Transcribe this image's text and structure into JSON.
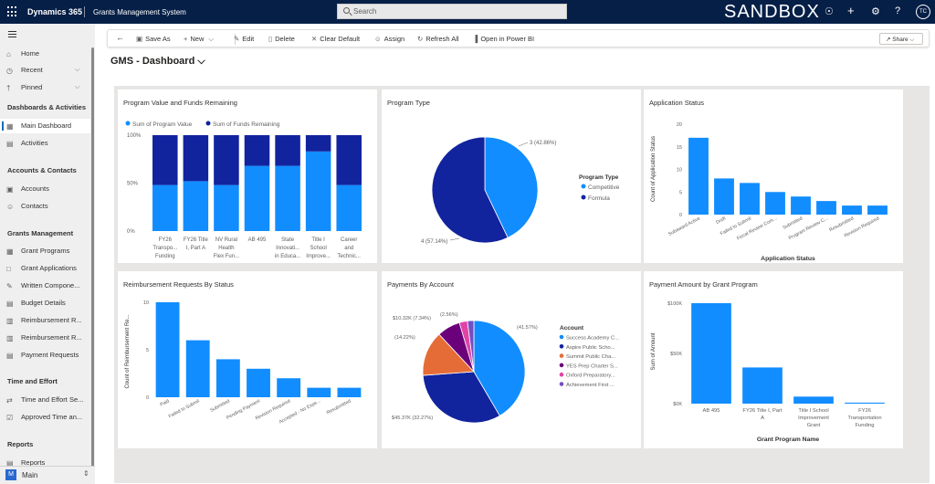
{
  "topbar": {
    "brand": "Dynamics 365",
    "app_name": "Grants Management System",
    "search_placeholder": "Search",
    "environment": "SANDBOX",
    "avatar_initials": "TC",
    "icons": [
      "lightbulb-icon",
      "plus-icon",
      "gear-icon",
      "help-icon"
    ]
  },
  "sidebar": {
    "top_items": [
      {
        "label": "Home",
        "icon": "home-icon"
      },
      {
        "label": "Recent",
        "icon": "clock-icon"
      },
      {
        "label": "Pinned",
        "icon": "pin-icon"
      }
    ],
    "groups": [
      {
        "heading": "Dashboards & Activities",
        "items": [
          {
            "label": "Main Dashboard",
            "icon": "dashboard-icon",
            "selected": true
          },
          {
            "label": "Activities",
            "icon": "clipboard-icon"
          }
        ]
      },
      {
        "heading": "Accounts & Contacts",
        "items": [
          {
            "label": "Accounts",
            "icon": "building-icon"
          },
          {
            "label": "Contacts",
            "icon": "person-icon"
          }
        ]
      },
      {
        "heading": "Grants Management",
        "items": [
          {
            "label": "Grant Programs",
            "icon": "grid-icon"
          },
          {
            "label": "Grant Applications",
            "icon": "document-icon"
          },
          {
            "label": "Written Compone...",
            "icon": "edit-icon"
          },
          {
            "label": "Budget Details",
            "icon": "money-icon"
          },
          {
            "label": "Reimbursement R...",
            "icon": "receipt-icon"
          },
          {
            "label": "Reimbursement R...",
            "icon": "receipt-list-icon"
          },
          {
            "label": "Payment Requests",
            "icon": "payment-icon"
          }
        ]
      },
      {
        "heading": "Time and Effort",
        "items": [
          {
            "label": "Time and Effort Se...",
            "icon": "time-icon"
          },
          {
            "label": "Approved Time an...",
            "icon": "approved-icon"
          }
        ]
      },
      {
        "heading": "Reports",
        "items": [
          {
            "label": "Reports",
            "icon": "report-icon"
          }
        ]
      }
    ],
    "area_badge": "M",
    "area_label": "Main"
  },
  "commands": {
    "save_as": "Save As",
    "new": "New",
    "edit": "Edit",
    "delete": "Delete",
    "clear_default": "Clear Default",
    "assign": "Assign",
    "refresh_all": "Refresh All",
    "open_power_bi": "Open in Power BI",
    "share": "Share"
  },
  "dashboard_title": "GMS - Dashboard",
  "chart_data": [
    {
      "type": "bar",
      "stacked": "100%",
      "title": "Program Value and Funds Remaining",
      "categories": [
        [
          "FY26",
          "Transpo...",
          "Funding"
        ],
        [
          "FY26 Title",
          "I, Part A"
        ],
        [
          "NV Rural",
          "Health",
          "Flex Fun..."
        ],
        [
          "AB 495"
        ],
        [
          "State",
          "Innovati...",
          "in Educa..."
        ],
        [
          "Title I",
          "School",
          "Improve..."
        ],
        [
          "Career",
          "and",
          "Technic..."
        ]
      ],
      "series": [
        {
          "name": "Sum of Program Value",
          "color": "#118dff",
          "values": [
            48,
            52,
            48,
            68,
            68,
            83,
            48
          ]
        },
        {
          "name": "Sum of Funds Remaining",
          "color": "#12239e",
          "values": [
            52,
            48,
            52,
            32,
            32,
            17,
            52
          ]
        }
      ],
      "ylim": [
        0,
        100
      ],
      "yticks": [
        "0%",
        "50%",
        "100%"
      ],
      "legend": "top-left"
    },
    {
      "type": "pie",
      "title": "Program Type",
      "legend_title": "Program Type",
      "slices": [
        {
          "name": "Competitive",
          "value": 3,
          "label": "3 (42.86%)",
          "color": "#118dff"
        },
        {
          "name": "Formula",
          "value": 4,
          "label": "4 (57.14%)",
          "color": "#12239e"
        }
      ],
      "legend": "right"
    },
    {
      "type": "bar",
      "title": "Application Status",
      "xlabel": "Application Status",
      "ylabel": "Count of Application Status",
      "categories": [
        "Subaward Active",
        "Draft",
        "Failed to Submit",
        "Fiscal Review Com...",
        "Submitted",
        "Program Review C...",
        "Resubmitted",
        "Revision Required"
      ],
      "values": [
        17,
        8,
        7,
        5,
        4,
        3,
        2,
        2
      ],
      "ylim": [
        0,
        20
      ],
      "yticks": [
        "0",
        "5",
        "10",
        "15",
        "20"
      ]
    },
    {
      "type": "bar",
      "title": "Reimbursement Requests By Status",
      "ylabel": "Count of Reimbursement Re...",
      "categories": [
        "Paid",
        "Failed to Submit",
        "Submitted",
        "Pending Payment",
        "Revision Required",
        "Accepted - No Expe...",
        "Resubmitted"
      ],
      "values": [
        10,
        6,
        4,
        3,
        2,
        1,
        1
      ],
      "ylim": [
        0,
        10
      ],
      "yticks": [
        "0",
        "5",
        "10"
      ]
    },
    {
      "type": "pie",
      "title": "Payments By Account",
      "legend_title": "Account",
      "slices": [
        {
          "name": "Success Academy C...",
          "value": 41.57,
          "label": "(41.57%)",
          "color": "#118dff"
        },
        {
          "name": "Aspire Public Scho...",
          "value": 32.27,
          "label": "$45.37K (32.27%)",
          "color": "#12239e"
        },
        {
          "name": "Summit Public Cha...",
          "value": 14.22,
          "label": "(14.22%)",
          "color": "#e66c37"
        },
        {
          "name": "YES Prep Charter S...",
          "value": 7.34,
          "label": "$10.32K (7.34%)",
          "color": "#6b007b"
        },
        {
          "name": "Oxford Preparatory...",
          "value": 2.56,
          "label": "(2.56%)",
          "color": "#e044a7"
        },
        {
          "name": "Achievement First ...",
          "value": 2.04,
          "label": "",
          "color": "#744ec2"
        }
      ],
      "legend": "right"
    },
    {
      "type": "bar",
      "title": "Payment Amount by Grant Program",
      "xlabel": "Grant Program Name",
      "ylabel": "Sum of Amount",
      "categories": [
        [
          "AB 495"
        ],
        [
          "FY26 Title I, Part",
          "A"
        ],
        [
          "Title I School",
          "Improvement",
          "Grant"
        ],
        [
          "FY26",
          "Transportation",
          "Funding"
        ]
      ],
      "values": [
        100,
        36,
        7,
        1
      ],
      "ylim": [
        0,
        100
      ],
      "yticks": [
        "$0K",
        "$50K",
        "$100K"
      ]
    }
  ]
}
